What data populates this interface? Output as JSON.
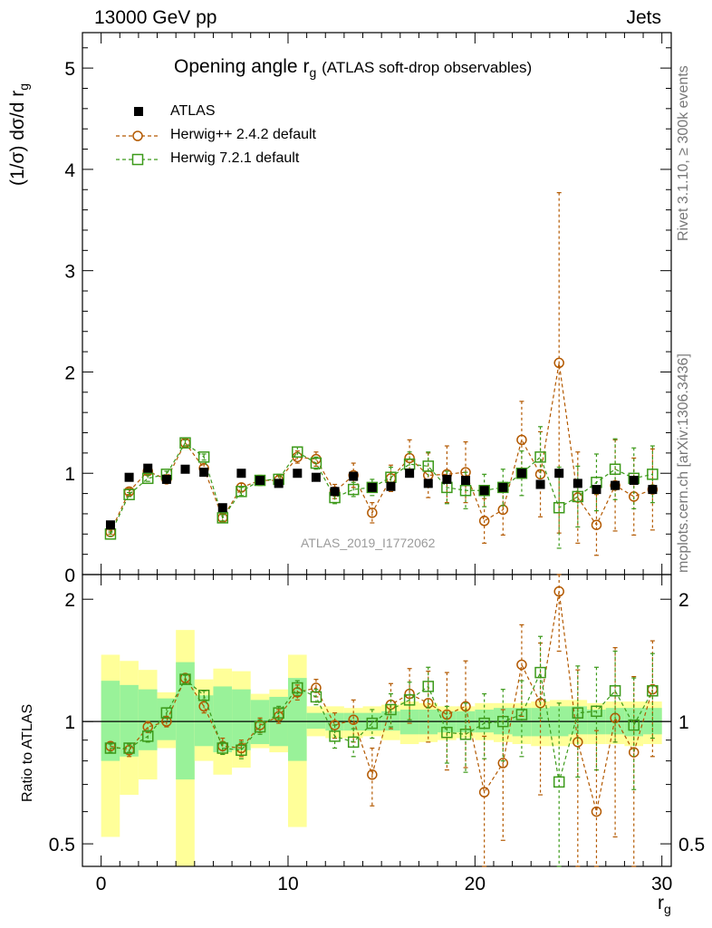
{
  "header": {
    "left": "13000 GeV pp",
    "right": "Jets"
  },
  "side_texts": {
    "rivet": "Rivet 3.1.10, ≥ 300k events",
    "mcplots": "mcplots.cern.ch [arXiv:1306.3436]"
  },
  "chart_data": [
    {
      "type": "scatter",
      "panel": "main",
      "title_main": "Opening angle r",
      "title_sub": "g",
      "title_extra": "(ATLAS soft-drop observables)",
      "ylabel": "(1/σ) dσ/d r",
      "ylabel_sub": "g",
      "xlim": [
        -1,
        30.5
      ],
      "ylim": [
        0,
        5.35
      ],
      "yticks": [
        0,
        1,
        2,
        3,
        4,
        5
      ],
      "xticks": [
        0,
        10,
        20,
        30
      ],
      "analysis_label": "ATLAS_2019_I1772062",
      "legend": [
        "ATLAS",
        "Herwig++ 2.4.2 default",
        "Herwig 7.2.1 default"
      ],
      "x": [
        0.5,
        1.5,
        2.5,
        3.5,
        4.5,
        5.5,
        6.5,
        7.5,
        8.5,
        9.5,
        10.5,
        11.5,
        12.5,
        13.5,
        14.5,
        15.5,
        16.5,
        17.5,
        18.5,
        19.5,
        20.5,
        21.5,
        22.5,
        23.5,
        24.5,
        25.5,
        26.5,
        27.5,
        28.5,
        29.5
      ],
      "series": [
        {
          "name": "ATLAS",
          "values": [
            0.49,
            0.96,
            1.05,
            0.94,
            1.04,
            1.01,
            0.66,
            1.0,
            0.93,
            0.9,
            1.0,
            0.96,
            0.82,
            0.97,
            0.86,
            0.87,
            1.0,
            0.9,
            0.94,
            0.93,
            0.83,
            0.86,
            1.0,
            0.89,
            1.0,
            0.9,
            0.84,
            0.88,
            0.93,
            0.84
          ]
        },
        {
          "name": "Herwig++ 2.4.2 default",
          "values": [
            0.42,
            0.82,
            1.02,
            0.94,
            1.3,
            1.05,
            0.56,
            0.86,
            0.93,
            0.93,
            1.16,
            1.14,
            0.82,
            0.98,
            0.61,
            0.95,
            1.15,
            0.98,
            0.99,
            1.01,
            0.53,
            0.64,
            1.33,
            0.99,
            2.09,
            0.76,
            0.49,
            0.88,
            0.77,
            0.84
          ],
          "errors": [
            0.02,
            0.03,
            0.03,
            0.03,
            0.03,
            0.04,
            0.04,
            0.04,
            0.05,
            0.05,
            0.06,
            0.07,
            0.07,
            0.12,
            0.1,
            0.13,
            0.18,
            0.22,
            0.28,
            0.3,
            0.22,
            0.25,
            0.38,
            0.42,
            1.68,
            0.45,
            0.3,
            0.45,
            0.38,
            0.4
          ]
        },
        {
          "name": "Herwig 7.2.1 default",
          "values": [
            0.4,
            0.79,
            0.95,
            0.99,
            1.3,
            1.16,
            0.56,
            0.82,
            0.93,
            0.94,
            1.21,
            1.1,
            0.76,
            0.84,
            0.86,
            0.96,
            1.09,
            1.07,
            0.86,
            0.83,
            0.83,
            0.86,
            1.0,
            1.16,
            0.66,
            0.77,
            0.91,
            1.04,
            0.95,
            0.99
          ],
          "errors": [
            0.02,
            0.02,
            0.03,
            0.03,
            0.03,
            0.03,
            0.03,
            0.04,
            0.04,
            0.05,
            0.05,
            0.06,
            0.06,
            0.07,
            0.08,
            0.1,
            0.12,
            0.14,
            0.16,
            0.18,
            0.16,
            0.18,
            0.22,
            0.3,
            0.4,
            0.3,
            0.28,
            0.3,
            0.3,
            0.28
          ]
        }
      ]
    },
    {
      "type": "scatter",
      "panel": "ratio",
      "ylabel": "Ratio to ATLAS",
      "xlabel": "r",
      "xlabel_sub": "g",
      "xlim": [
        -1,
        30.5
      ],
      "ylim": [
        0.44,
        2.3
      ],
      "yscale": "log",
      "yticks": [
        0.5,
        1,
        2
      ],
      "xticks": [
        0,
        10,
        20,
        30
      ],
      "x": [
        0.5,
        1.5,
        2.5,
        3.5,
        4.5,
        5.5,
        6.5,
        7.5,
        8.5,
        9.5,
        10.5,
        11.5,
        12.5,
        13.5,
        14.5,
        15.5,
        16.5,
        17.5,
        18.5,
        19.5,
        20.5,
        21.5,
        22.5,
        23.5,
        24.5,
        25.5,
        26.5,
        27.5,
        28.5,
        29.5
      ],
      "band_stat": [
        [
          0.8,
          1.26
        ],
        [
          0.82,
          1.23
        ],
        [
          0.85,
          1.2
        ],
        [
          0.9,
          1.14
        ],
        [
          0.72,
          1.4
        ],
        [
          0.87,
          1.16
        ],
        [
          0.84,
          1.22
        ],
        [
          0.85,
          1.2
        ],
        [
          0.88,
          1.13
        ],
        [
          0.87,
          1.15
        ],
        [
          0.8,
          1.28
        ],
        [
          0.96,
          1.05
        ],
        [
          0.95,
          1.05
        ],
        [
          0.95,
          1.05
        ],
        [
          0.95,
          1.05
        ],
        [
          0.95,
          1.06
        ],
        [
          0.93,
          1.07
        ],
        [
          0.93,
          1.07
        ],
        [
          0.94,
          1.06
        ],
        [
          0.94,
          1.06
        ],
        [
          0.94,
          1.07
        ],
        [
          0.93,
          1.08
        ],
        [
          0.92,
          1.08
        ],
        [
          0.92,
          1.08
        ],
        [
          0.92,
          1.09
        ],
        [
          0.93,
          1.09
        ],
        [
          0.93,
          1.07
        ],
        [
          0.93,
          1.08
        ],
        [
          0.92,
          1.08
        ],
        [
          0.93,
          1.08
        ]
      ],
      "band_total": [
        [
          0.52,
          1.46
        ],
        [
          0.66,
          1.41
        ],
        [
          0.72,
          1.34
        ],
        [
          0.86,
          1.18
        ],
        [
          0.44,
          1.68
        ],
        [
          0.8,
          1.27
        ],
        [
          0.74,
          1.35
        ],
        [
          0.77,
          1.33
        ],
        [
          0.86,
          1.17
        ],
        [
          0.84,
          1.2
        ],
        [
          0.55,
          1.46
        ],
        [
          0.92,
          1.09
        ],
        [
          0.91,
          1.09
        ],
        [
          0.91,
          1.08
        ],
        [
          0.92,
          1.09
        ],
        [
          0.9,
          1.1
        ],
        [
          0.88,
          1.12
        ],
        [
          0.89,
          1.11
        ],
        [
          0.9,
          1.09
        ],
        [
          0.91,
          1.09
        ],
        [
          0.9,
          1.11
        ],
        [
          0.89,
          1.11
        ],
        [
          0.88,
          1.11
        ],
        [
          0.87,
          1.12
        ],
        [
          0.87,
          1.13
        ],
        [
          0.88,
          1.13
        ],
        [
          0.88,
          1.11
        ],
        [
          0.88,
          1.12
        ],
        [
          0.87,
          1.12
        ],
        [
          0.88,
          1.12
        ]
      ],
      "series": [
        {
          "name": "Herwig++ 2.4.2 default",
          "values": [
            0.87,
            0.85,
            0.97,
            1.0,
            1.28,
            1.09,
            0.87,
            0.86,
            0.98,
            1.03,
            1.18,
            1.21,
            0.98,
            1.01,
            0.74,
            1.1,
            1.17,
            1.11,
            1.04,
            1.09,
            0.67,
            0.79,
            1.38,
            1.11,
            2.09,
            0.89,
            0.6,
            1.02,
            0.84,
            1.2
          ],
          "errors": [
            0.02,
            0.03,
            0.03,
            0.03,
            0.03,
            0.04,
            0.04,
            0.04,
            0.04,
            0.04,
            0.05,
            0.06,
            0.07,
            0.12,
            0.12,
            0.14,
            0.18,
            0.22,
            0.28,
            0.32,
            0.25,
            0.28,
            0.35,
            0.45,
            0.6,
            0.45,
            0.35,
            0.5,
            0.45,
            0.38
          ]
        },
        {
          "name": "Herwig 7.2.1 default",
          "values": [
            0.86,
            0.86,
            0.92,
            1.05,
            1.27,
            1.16,
            0.86,
            0.85,
            0.97,
            1.05,
            1.21,
            1.15,
            0.92,
            0.89,
            0.99,
            1.07,
            1.13,
            1.22,
            0.94,
            0.93,
            0.99,
            1.0,
            1.04,
            1.32,
            0.71,
            1.05,
            1.06,
            1.19,
            0.98,
            1.19
          ],
          "errors": [
            0.02,
            0.02,
            0.03,
            0.03,
            0.03,
            0.03,
            0.03,
            0.04,
            0.04,
            0.04,
            0.05,
            0.05,
            0.06,
            0.07,
            0.08,
            0.1,
            0.12,
            0.14,
            0.15,
            0.18,
            0.18,
            0.2,
            0.22,
            0.3,
            0.4,
            0.32,
            0.3,
            0.3,
            0.3,
            0.28
          ]
        }
      ]
    }
  ],
  "colors": {
    "atlas": "#000000",
    "herwigpp": "#b35900",
    "herwig7": "#3c9a1a",
    "band_stat": "#99f299",
    "band_total": "#ffff99",
    "side_text": "#777777",
    "analysis_label": "#9b9b9b"
  }
}
